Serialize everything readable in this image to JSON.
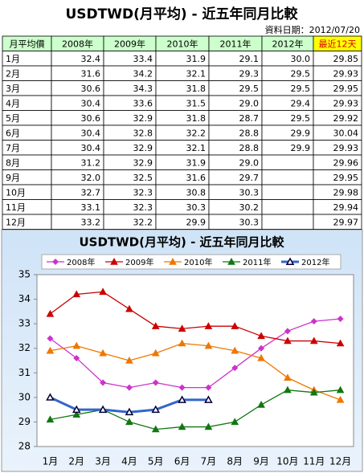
{
  "title": "USDTWD(月平均) - 近五年同月比較",
  "date_label": "資料日期：2012/07/20",
  "table": {
    "header": [
      "月平均價",
      "2008年",
      "2009年",
      "2010年",
      "2011年",
      "2012年",
      "最近12天"
    ],
    "rows": [
      [
        "1月",
        "32.4",
        "33.4",
        "31.9",
        "29.1",
        "30.0",
        "29.85"
      ],
      [
        "2月",
        "31.6",
        "34.2",
        "32.1",
        "29.3",
        "29.5",
        "29.93"
      ],
      [
        "3月",
        "30.6",
        "34.3",
        "31.8",
        "29.5",
        "29.5",
        "29.95"
      ],
      [
        "4月",
        "30.4",
        "33.6",
        "31.5",
        "29.0",
        "29.4",
        "29.93"
      ],
      [
        "5月",
        "30.6",
        "32.9",
        "31.8",
        "28.7",
        "29.5",
        "29.92"
      ],
      [
        "6月",
        "30.4",
        "32.8",
        "32.2",
        "28.8",
        "29.9",
        "30.04"
      ],
      [
        "7月",
        "30.4",
        "32.9",
        "32.1",
        "28.8",
        "29.9",
        "29.93"
      ],
      [
        "8月",
        "31.2",
        "32.9",
        "31.9",
        "29.0",
        null,
        "29.96"
      ],
      [
        "9月",
        "32.0",
        "32.5",
        "31.6",
        "29.7",
        null,
        "29.95"
      ],
      [
        "10月",
        "32.7",
        "32.3",
        "30.8",
        "30.3",
        null,
        "29.98"
      ],
      [
        "11月",
        "33.1",
        "32.3",
        "30.3",
        "30.2",
        null,
        "29.94"
      ],
      [
        "12月",
        "33.2",
        "32.2",
        "29.9",
        "30.3",
        null,
        "29.97"
      ]
    ]
  },
  "chart_data": {
    "type": "line",
    "title": "USDTWD(月平均) - 近五年同月比較",
    "categories": [
      "1月",
      "2月",
      "3月",
      "4月",
      "5月",
      "6月",
      "7月",
      "8月",
      "9月",
      "10月",
      "11月",
      "12月"
    ],
    "series": [
      {
        "name": "2008年",
        "color": "#cc33cc",
        "marker": "diamond",
        "values": [
          32.4,
          31.6,
          30.6,
          30.4,
          30.6,
          30.4,
          30.4,
          31.2,
          32.0,
          32.7,
          33.1,
          33.2
        ]
      },
      {
        "name": "2009年",
        "color": "#cc0000",
        "marker": "triangle",
        "values": [
          33.4,
          34.2,
          34.3,
          33.6,
          32.9,
          32.8,
          32.9,
          32.9,
          32.5,
          32.3,
          32.3,
          32.2
        ]
      },
      {
        "name": "2010年",
        "color": "#ee7700",
        "marker": "triangle",
        "values": [
          31.9,
          32.1,
          31.8,
          31.5,
          31.8,
          32.2,
          32.1,
          31.9,
          31.6,
          30.8,
          30.3,
          29.9
        ]
      },
      {
        "name": "2011年",
        "color": "#117711",
        "marker": "triangle",
        "values": [
          29.1,
          29.3,
          29.5,
          29.0,
          28.7,
          28.8,
          28.8,
          29.0,
          29.7,
          30.3,
          30.2,
          30.3
        ]
      },
      {
        "name": "2012年",
        "color": "#3366cc",
        "marker": "open-triangle",
        "width": 3,
        "values": [
          30.0,
          29.5,
          29.5,
          29.4,
          29.5,
          29.9,
          29.9,
          null,
          null,
          null,
          null,
          null
        ]
      }
    ],
    "ylim": [
      28,
      35
    ],
    "yticks": [
      28,
      29,
      30,
      31,
      32,
      33,
      34,
      35
    ],
    "grid": false,
    "legend": "top"
  }
}
